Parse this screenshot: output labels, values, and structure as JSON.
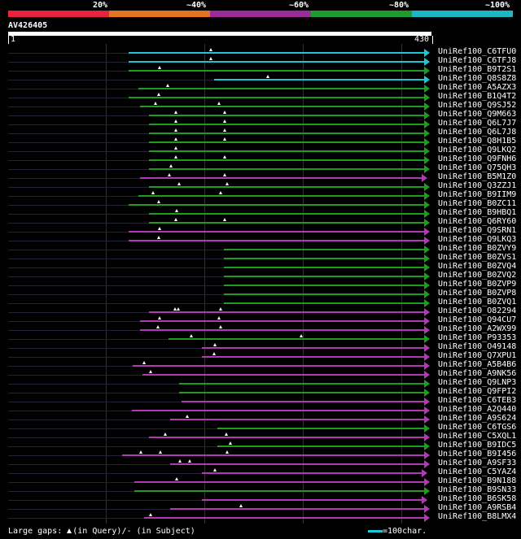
{
  "legend": {
    "segments": [
      {
        "label": "20%",
        "color": "#e8213e"
      },
      {
        "label": "~40%",
        "color": "#e07423"
      },
      {
        "label": "~60%",
        "color": "#9b2b98"
      },
      {
        "label": "~80%",
        "color": "#1f9c2c"
      },
      {
        "label": "~100%",
        "color": "#1bb7c6"
      }
    ]
  },
  "query": {
    "name": "AV426405",
    "start": "1",
    "end": "430"
  },
  "colors": {
    "cyan": "#1bc6d6",
    "green": "#1f9c1f",
    "magenta": "#b03ab0",
    "bg": "#000000",
    "grid": "#333333"
  },
  "hits": [
    {
      "name": "UniRef100_C6TFU0",
      "color": "cyan",
      "start": 158,
      "end": 527,
      "marks": [
        259
      ]
    },
    {
      "name": "UniRef100_C6TFJ8",
      "color": "cyan",
      "start": 158,
      "end": 527,
      "marks": [
        259
      ]
    },
    {
      "name": "UniRef100_B9T2S1",
      "color": "green",
      "start": 158,
      "end": 527,
      "marks": [
        196
      ]
    },
    {
      "name": "UniRef100_Q8S8Z8",
      "color": "cyan",
      "start": 263,
      "end": 527,
      "marks": [
        329
      ]
    },
    {
      "name": "UniRef100_A5AZX3",
      "color": "green",
      "start": 170,
      "end": 527,
      "marks": [
        206
      ]
    },
    {
      "name": "UniRef100_B1Q4T2",
      "color": "green",
      "start": 158,
      "end": 527,
      "marks": [
        195
      ]
    },
    {
      "name": "UniRef100_Q9SJ52",
      "color": "green",
      "start": 172,
      "end": 527,
      "marks": [
        191,
        269
      ]
    },
    {
      "name": "UniRef100_Q9M663",
      "color": "green",
      "start": 183,
      "end": 527,
      "marks": [
        216,
        276
      ]
    },
    {
      "name": "UniRef100_Q6L7J7",
      "color": "green",
      "start": 183,
      "end": 527,
      "marks": [
        216,
        276
      ]
    },
    {
      "name": "UniRef100_Q6L7J8",
      "color": "green",
      "start": 183,
      "end": 527,
      "marks": [
        216,
        276
      ]
    },
    {
      "name": "UniRef100_Q8H1B5",
      "color": "green",
      "start": 183,
      "end": 527,
      "marks": [
        216,
        276
      ]
    },
    {
      "name": "UniRef100_Q9LKQ2",
      "color": "green",
      "start": 183,
      "end": 527,
      "marks": [
        216
      ]
    },
    {
      "name": "UniRef100_Q9FNH6",
      "color": "green",
      "start": 183,
      "end": 527,
      "marks": [
        216,
        276
      ]
    },
    {
      "name": "UniRef100_Q75QH3",
      "color": "green",
      "start": 183,
      "end": 527,
      "marks": [
        210
      ]
    },
    {
      "name": "UniRef100_B5M1Z0",
      "color": "magenta",
      "start": 172,
      "end": 524,
      "marks": [
        208,
        276
      ]
    },
    {
      "name": "UniRef100_Q3ZZJ1",
      "color": "green",
      "start": 183,
      "end": 527,
      "marks": [
        220,
        279
      ]
    },
    {
      "name": "UniRef100_B9IIM9",
      "color": "green",
      "start": 170,
      "end": 527,
      "marks": [
        188,
        271
      ]
    },
    {
      "name": "UniRef100_B0ZC11",
      "color": "green",
      "start": 158,
      "end": 527,
      "marks": [
        195
      ]
    },
    {
      "name": "UniRef100_B9HBQ1",
      "color": "green",
      "start": 183,
      "end": 527,
      "marks": [
        217
      ]
    },
    {
      "name": "UniRef100_Q6RY60",
      "color": "green",
      "start": 183,
      "end": 527,
      "marks": [
        216,
        276
      ]
    },
    {
      "name": "UniRef100_Q9SRN1",
      "color": "magenta",
      "start": 158,
      "end": 527,
      "marks": [
        196
      ]
    },
    {
      "name": "UniRef100_Q9LKQ3",
      "color": "magenta",
      "start": 158,
      "end": 527,
      "marks": [
        195
      ]
    },
    {
      "name": "UniRef100_B0ZVY9",
      "color": "green",
      "start": 275,
      "end": 527,
      "marks": []
    },
    {
      "name": "UniRef100_B0ZVS1",
      "color": "green",
      "start": 275,
      "end": 527,
      "marks": []
    },
    {
      "name": "UniRef100_B0ZVQ4",
      "color": "green",
      "start": 275,
      "end": 527,
      "marks": []
    },
    {
      "name": "UniRef100_B0ZVQ2",
      "color": "green",
      "start": 275,
      "end": 527,
      "marks": []
    },
    {
      "name": "UniRef100_B0ZVP9",
      "color": "green",
      "start": 275,
      "end": 527,
      "marks": []
    },
    {
      "name": "UniRef100_B0ZVP8",
      "color": "green",
      "start": 275,
      "end": 527,
      "marks": []
    },
    {
      "name": "UniRef100_B0ZVQ1",
      "color": "green",
      "start": 275,
      "end": 527,
      "marks": []
    },
    {
      "name": "UniRef100_O82294",
      "color": "magenta",
      "start": 183,
      "end": 527,
      "marks": [
        215,
        219,
        271
      ]
    },
    {
      "name": "UniRef100_Q94CU7",
      "color": "magenta",
      "start": 172,
      "end": 527,
      "marks": [
        196,
        269
      ]
    },
    {
      "name": "UniRef100_A2WX99",
      "color": "magenta",
      "start": 172,
      "end": 527,
      "marks": [
        194,
        271
      ]
    },
    {
      "name": "UniRef100_P93353",
      "color": "green",
      "start": 207,
      "end": 527,
      "marks": [
        235,
        370
      ]
    },
    {
      "name": "UniRef100_O49148",
      "color": "magenta",
      "start": 248,
      "end": 527,
      "marks": [
        264
      ]
    },
    {
      "name": "UniRef100_Q7XPU1",
      "color": "magenta",
      "start": 248,
      "end": 527,
      "marks": [
        263
      ]
    },
    {
      "name": "UniRef100_A5B4B6",
      "color": "magenta",
      "start": 163,
      "end": 527,
      "marks": [
        177
      ]
    },
    {
      "name": "UniRef100_A9NK56",
      "color": "magenta",
      "start": 175,
      "end": 527,
      "marks": [
        185
      ]
    },
    {
      "name": "UniRef100_Q9LNP3",
      "color": "green",
      "start": 220,
      "end": 527,
      "marks": []
    },
    {
      "name": "UniRef100_Q9FPI2",
      "color": "green",
      "start": 220,
      "end": 527,
      "marks": []
    },
    {
      "name": "UniRef100_C6TEB3",
      "color": "magenta",
      "start": 223,
      "end": 527,
      "marks": []
    },
    {
      "name": "UniRef100_A2Q440",
      "color": "magenta",
      "start": 162,
      "end": 527,
      "marks": []
    },
    {
      "name": "UniRef100_A9S624",
      "color": "magenta",
      "start": 209,
      "end": 527,
      "marks": [
        230
      ]
    },
    {
      "name": "UniRef100_C6TGS6",
      "color": "green",
      "start": 267,
      "end": 527,
      "marks": []
    },
    {
      "name": "UniRef100_C5XQL1",
      "color": "magenta",
      "start": 183,
      "end": 527,
      "marks": [
        203,
        278
      ]
    },
    {
      "name": "UniRef100_B9IDC5",
      "color": "green",
      "start": 267,
      "end": 527,
      "marks": [
        283
      ]
    },
    {
      "name": "UniRef100_B9I456",
      "color": "magenta",
      "start": 150,
      "end": 527,
      "marks": [
        173,
        197,
        279
      ]
    },
    {
      "name": "UniRef100_A9SF33",
      "color": "magenta",
      "start": 209,
      "end": 527,
      "marks": [
        221,
        233
      ]
    },
    {
      "name": "UniRef100_C5YAZ4",
      "color": "magenta",
      "start": 248,
      "end": 524,
      "marks": [
        264
      ]
    },
    {
      "name": "UniRef100_B9N188",
      "color": "magenta",
      "start": 165,
      "end": 527,
      "marks": [
        217
      ]
    },
    {
      "name": "UniRef100_B9SN33",
      "color": "green",
      "start": 165,
      "end": 527,
      "marks": []
    },
    {
      "name": "UniRef100_B6SK58",
      "color": "magenta",
      "start": 248,
      "end": 524,
      "marks": []
    },
    {
      "name": "UniRef100_A9RSB4",
      "color": "magenta",
      "start": 209,
      "end": 527,
      "marks": [
        296
      ]
    },
    {
      "name": "UniRef100_B8LMX4",
      "color": "magenta",
      "start": 177,
      "end": 527,
      "marks": [
        185
      ]
    }
  ],
  "footer": {
    "gaps_prefix": "Large gaps: ",
    "gaps_query": "(in Query)/",
    "gaps_subject": "(in Subject)",
    "scale": "=100char."
  }
}
